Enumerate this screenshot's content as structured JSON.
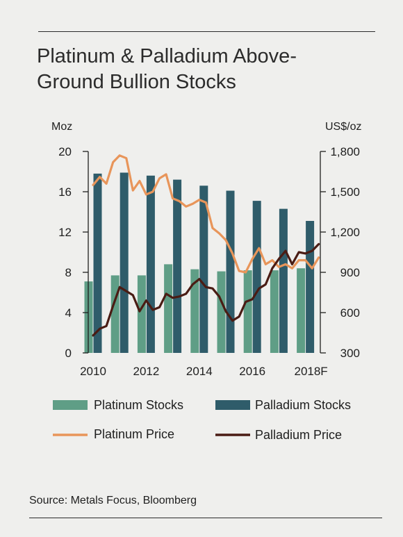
{
  "title": "Platinum & Palladium Above-Ground Bullion Stocks",
  "source": "Source: Metals Focus, Bloomberg",
  "colors": {
    "platinum_stocks": "#5f9e86",
    "palladium_stocks": "#2f5c6a",
    "platinum_price": "#e8955a",
    "palladium_price": "#4a1c14"
  },
  "chart_data": {
    "type": "bar+line",
    "categories": [
      "2010",
      "2011",
      "2012",
      "2013",
      "2014",
      "2015",
      "2016",
      "2017",
      "2018F"
    ],
    "x_tick_labels": [
      "2010",
      "2012",
      "2014",
      "2016",
      "2018F"
    ],
    "left_axis": {
      "unit": "Moz",
      "ylim": [
        0,
        20
      ],
      "ticks": [
        "0",
        "4",
        "8",
        "12",
        "16",
        "20"
      ]
    },
    "right_axis": {
      "unit": "US$/oz",
      "ylim": [
        300,
        1800
      ],
      "ticks": [
        "300",
        "600",
        "900",
        "1,200",
        "1,500",
        "1,800"
      ]
    },
    "series": [
      {
        "name": "Platinum Stocks",
        "type": "bar",
        "axis": "left",
        "values": [
          7.1,
          7.7,
          7.7,
          8.8,
          8.3,
          8.1,
          8.2,
          8.2,
          8.4
        ]
      },
      {
        "name": "Palladium Stocks",
        "type": "bar",
        "axis": "left",
        "values": [
          17.8,
          17.9,
          17.6,
          17.2,
          16.6,
          16.1,
          15.1,
          14.3,
          13.1
        ]
      },
      {
        "name": "Platinum Price",
        "type": "line",
        "axis": "right",
        "x": [
          2010.0,
          2010.25,
          2010.5,
          2010.75,
          2011.0,
          2011.25,
          2011.5,
          2011.75,
          2012.0,
          2012.25,
          2012.5,
          2012.75,
          2013.0,
          2013.25,
          2013.5,
          2013.75,
          2014.0,
          2014.25,
          2014.5,
          2014.75,
          2015.0,
          2015.25,
          2015.5,
          2015.75,
          2016.0,
          2016.25,
          2016.5,
          2016.75,
          2017.0,
          2017.25,
          2017.5,
          2017.75,
          2018.0,
          2018.25,
          2018.5
        ],
        "values": [
          1550,
          1610,
          1560,
          1720,
          1770,
          1750,
          1510,
          1580,
          1480,
          1500,
          1600,
          1630,
          1450,
          1430,
          1390,
          1410,
          1440,
          1420,
          1230,
          1190,
          1140,
          1040,
          910,
          900,
          1000,
          1080,
          960,
          990,
          940,
          960,
          930,
          990,
          990,
          930,
          1010
        ]
      },
      {
        "name": "Palladium Price",
        "type": "line",
        "axis": "right",
        "x": [
          2010.0,
          2010.25,
          2010.5,
          2010.75,
          2011.0,
          2011.25,
          2011.5,
          2011.75,
          2012.0,
          2012.25,
          2012.5,
          2012.75,
          2013.0,
          2013.25,
          2013.5,
          2013.75,
          2014.0,
          2014.25,
          2014.5,
          2014.75,
          2015.0,
          2015.25,
          2015.5,
          2015.75,
          2016.0,
          2016.25,
          2016.5,
          2016.75,
          2017.0,
          2017.25,
          2017.5,
          2017.75,
          2018.0,
          2018.25,
          2018.5
        ],
        "values": [
          430,
          480,
          500,
          650,
          790,
          760,
          730,
          610,
          690,
          620,
          640,
          740,
          710,
          720,
          740,
          810,
          850,
          790,
          780,
          720,
          610,
          540,
          570,
          680,
          700,
          780,
          810,
          930,
          1000,
          1060,
          960,
          1050,
          1040,
          1060,
          1110
        ]
      }
    ],
    "legend": [
      {
        "name": "Platinum Stocks",
        "symbol": "bar"
      },
      {
        "name": "Palladium Stocks",
        "symbol": "bar"
      },
      {
        "name": "Platinum Price",
        "symbol": "line"
      },
      {
        "name": "Palladium Price",
        "symbol": "line"
      }
    ],
    "grid": false,
    "legend_position": "bottom"
  }
}
